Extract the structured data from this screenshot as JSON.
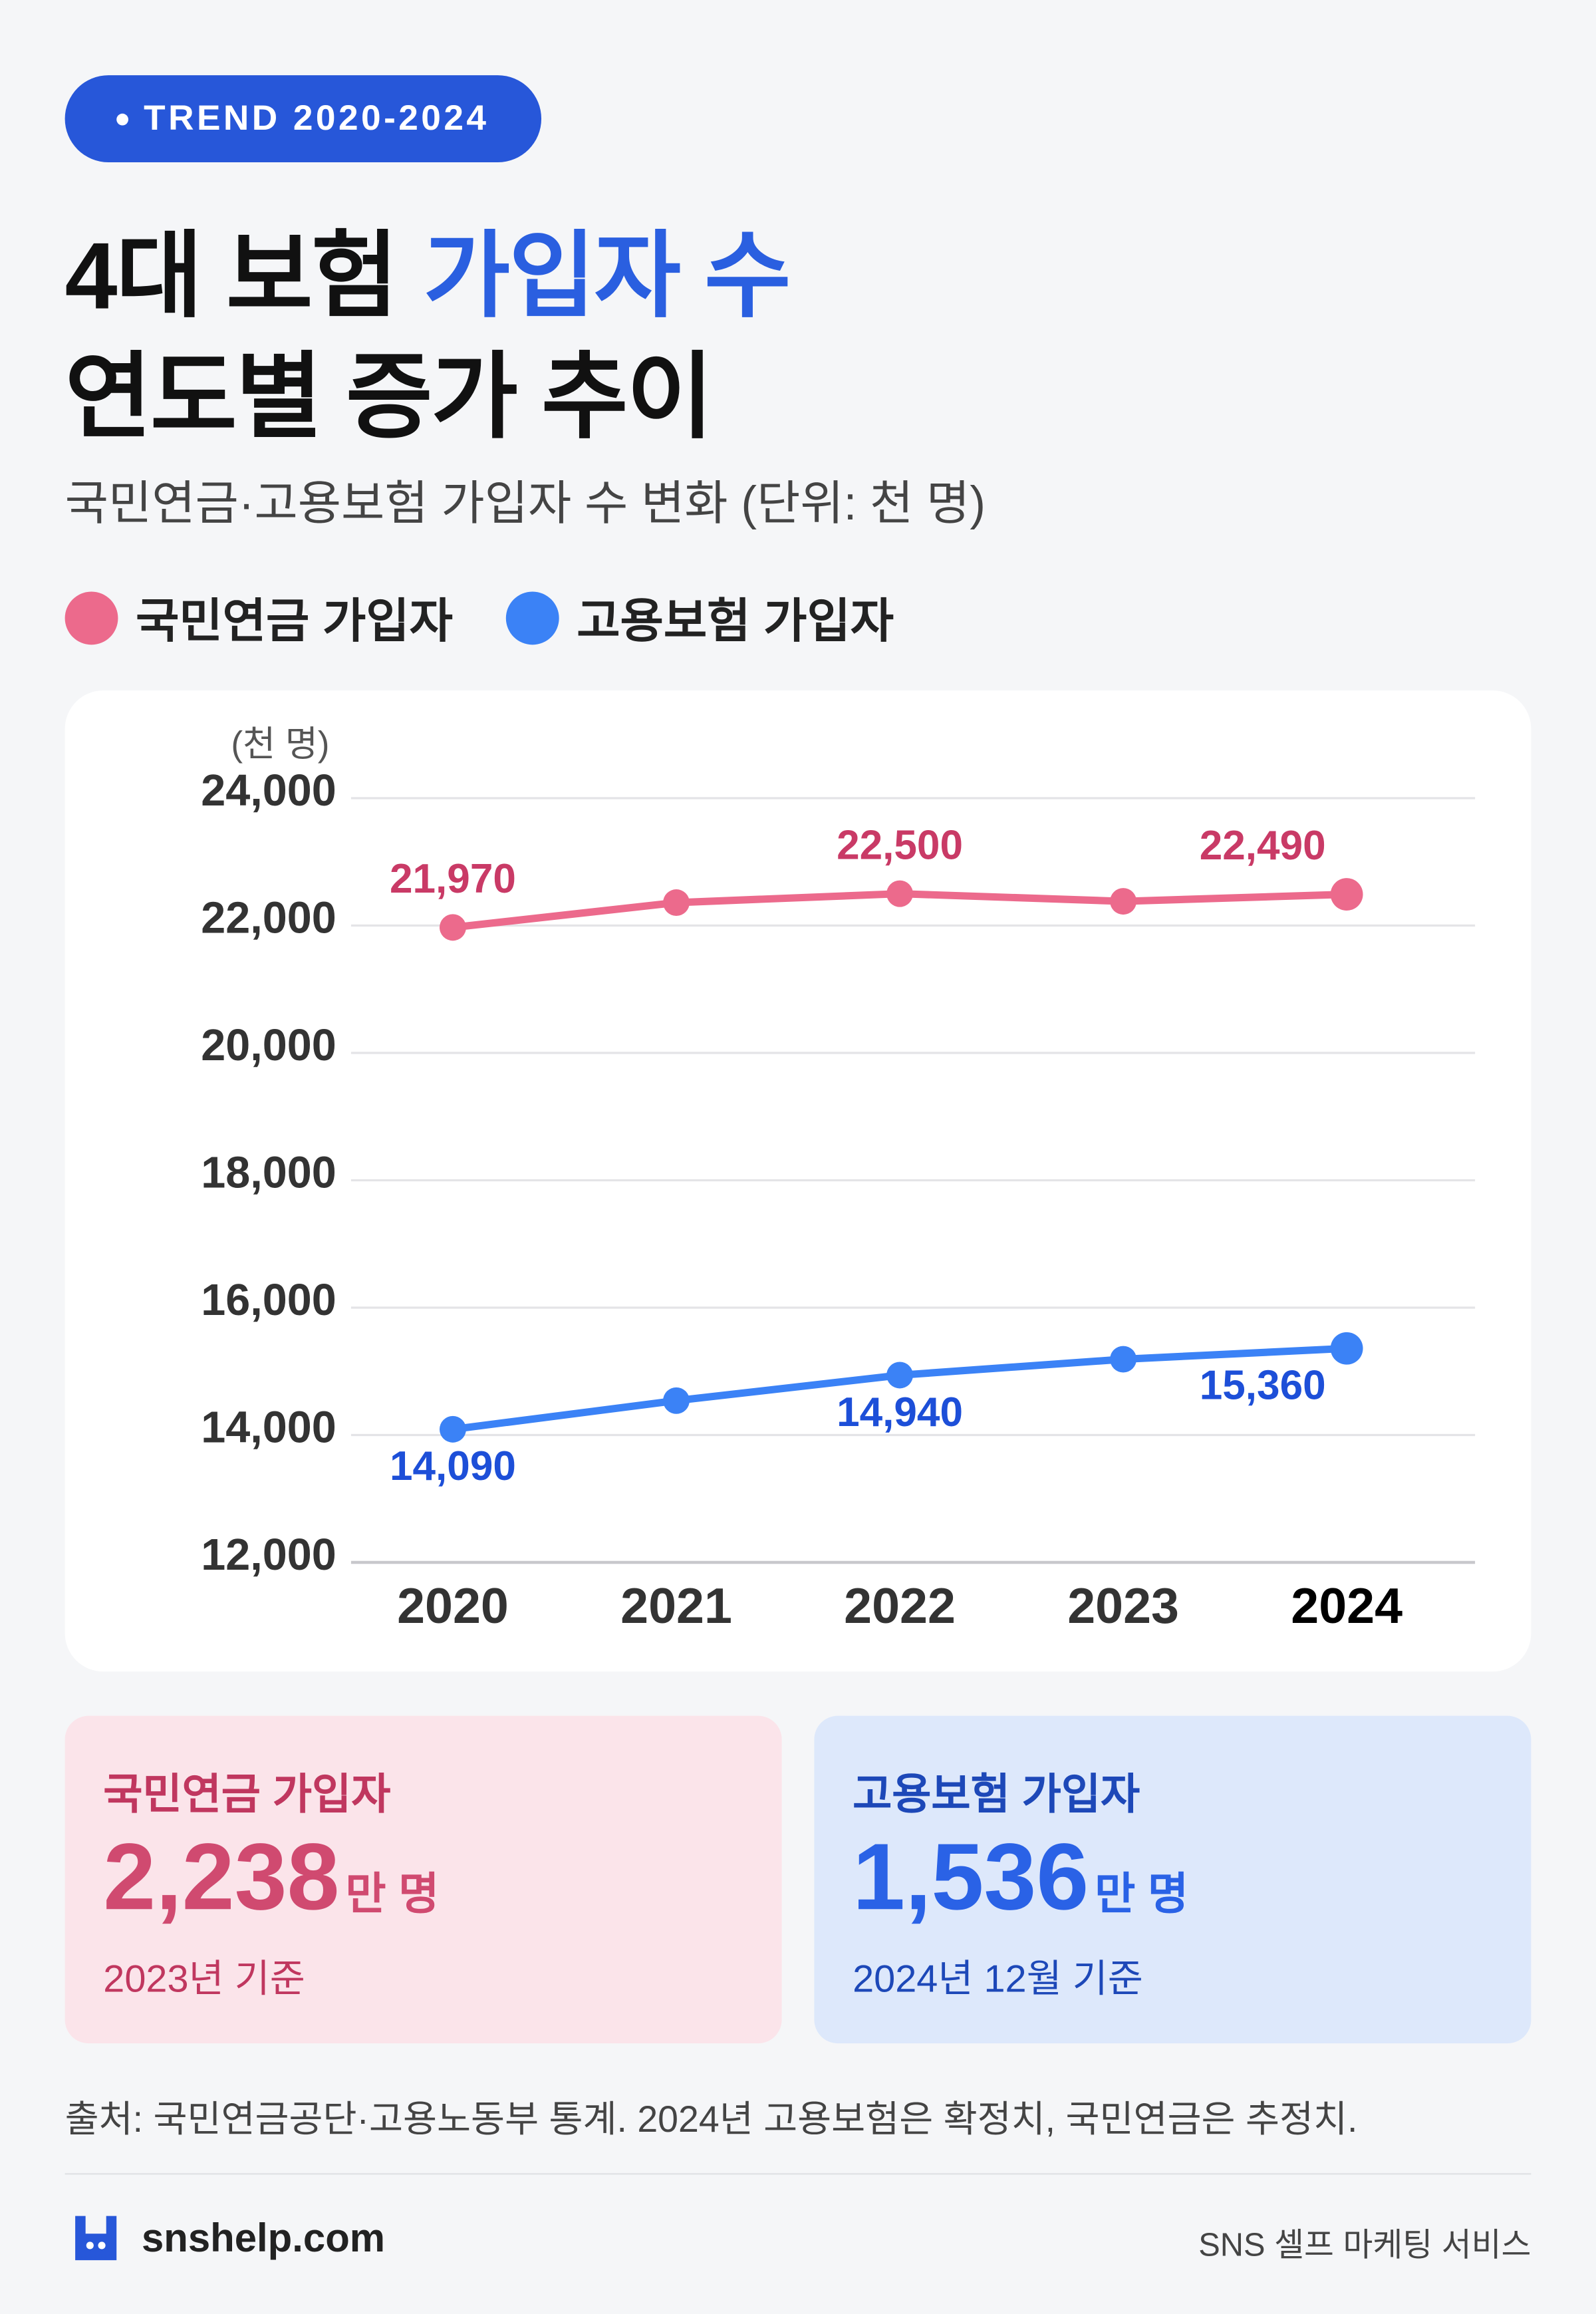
{
  "header": {
    "badge": "TREND 2020-2024",
    "title": [
      "4대 보험",
      "가입자 수",
      "연도별 증가 추이"
    ]
  },
  "chart_data": {
    "type": "line",
    "subtitle": "국민연금·고용보험 가입자 수 변화 (단위: 천 명)",
    "y_label": "(천 명)",
    "categories": [
      "2020",
      "2021",
      "2022",
      "2023",
      "2024"
    ],
    "series": [
      {
        "name": "국민연금 가입자",
        "color": "#ec6a8c",
        "label_color": "#c93a66",
        "values": [
          21970,
          22360,
          22500,
          22380,
          22490
        ],
        "value_labels": [
          "21,970",
          null,
          "22,500",
          null,
          "22,490"
        ]
      },
      {
        "name": "고용보험 가입자",
        "color": "#3b82f6",
        "label_color": "#1d4fd8",
        "values": [
          14090,
          14540,
          14940,
          15190,
          15360
        ],
        "value_labels": [
          "14,090",
          null,
          "14,940",
          null,
          "15,360"
        ]
      }
    ],
    "ylim": [
      12000,
      24000
    ],
    "yticks": [
      {
        "value": 12000,
        "label": "12,000"
      },
      {
        "value": 14000,
        "label": "14,000"
      },
      {
        "value": 16000,
        "label": "16,000"
      },
      {
        "value": 18000,
        "label": "18,000"
      },
      {
        "value": 20000,
        "label": "20,000"
      },
      {
        "value": 22000,
        "label": "22,000"
      },
      {
        "value": 24000,
        "label": "24,000"
      }
    ],
    "grid": true
  },
  "cards": [
    {
      "label": "국민연금 가입자",
      "value": "2,238",
      "unit": "만 명",
      "note": "2023년 기준"
    },
    {
      "label": "고용보험 가입자",
      "value": "1,536",
      "unit": "만 명",
      "note": "2024년 12월 기준"
    }
  ],
  "footer": {
    "source": "출처: 국민연금공단·고용노동부 통계. 2024년 고용보험은 확정치, 국민연금은 추정치.",
    "brand": "snshelp.com",
    "service": "SNS 셀프 마케팅 서비스"
  }
}
